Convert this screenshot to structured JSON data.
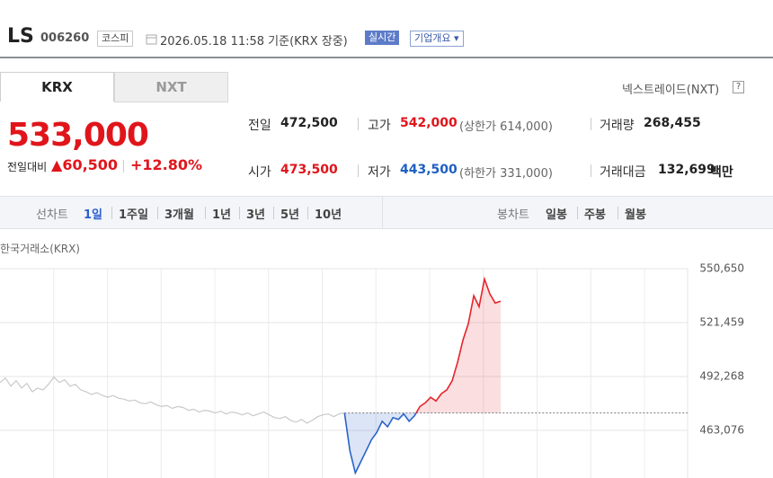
{
  "header": {
    "name": "LS",
    "code": "006260",
    "market": "코스피",
    "timestamp": "2026.05.18 11:58 기준(KRX 장중)",
    "realtime": "실시간",
    "company_info": "기업개요"
  },
  "tabs": [
    "KRX",
    "NXT"
  ],
  "nxt_link": "넥스트레이드(NXT)",
  "help": "?",
  "price": {
    "current": "533,000",
    "change_label": "전일대비",
    "change": "60,500",
    "change_pct": "+12.80%"
  },
  "summary": [
    {
      "label": "전일",
      "value": "472,500"
    },
    {
      "label": "고가",
      "value": "542,000",
      "note": "(상한가 614,000)"
    },
    {
      "label": "거래량",
      "value": "268,455"
    },
    {
      "label": "시가",
      "value": "473,500"
    },
    {
      "label": "저가",
      "value": "443,500",
      "note": "(하한가 331,000)"
    },
    {
      "label": "거래대금",
      "value": "132,699",
      "unit": "백만"
    }
  ],
  "toolbar": {
    "line_chart": {
      "label": "선차트",
      "periods": [
        "1일",
        "1주일",
        "3개월",
        "1년",
        "3년",
        "5년",
        "10년"
      ]
    },
    "candle_chart": {
      "label": "봉차트",
      "periods": [
        "일봉",
        "주봉",
        "월봉"
      ]
    }
  },
  "source": "한국거래소(KRX)",
  "chart_data": {
    "type": "line",
    "ylim": [
      437293,
      550650
    ],
    "yticks": [
      {
        "value": 463076,
        "label": "463,076"
      },
      {
        "value": 492268,
        "label": "492,268"
      },
      {
        "value": 521459,
        "label": "521,459"
      },
      {
        "value": 550650,
        "label": "550,650"
      }
    ],
    "grid": true,
    "series": [
      {
        "color": "#c9c9c9",
        "values": [
          489000,
          491500,
          487000,
          490000,
          486000,
          488500,
          484000,
          486000,
          485000,
          488000,
          492000,
          489000,
          490500,
          487000,
          488000,
          485000,
          484000,
          482500,
          483500,
          482000,
          481000,
          482000,
          480500,
          480000,
          479000,
          479500,
          478000,
          477500,
          478500,
          477000,
          476000,
          476500,
          475000,
          476000,
          475500,
          474000,
          474500,
          473000,
          474000,
          473500,
          472500,
          473500,
          472000,
          473000,
          472500,
          471500,
          472500,
          471000,
          472000,
          473000,
          471500,
          470000,
          469500,
          470500,
          468500,
          467500,
          469000,
          467000,
          468500,
          470500,
          471500,
          472000,
          470500,
          472000,
          472500,
          null,
          null,
          null,
          null,
          null,
          null,
          null,
          null,
          null,
          null,
          null,
          null,
          null,
          null,
          null,
          null,
          null,
          null,
          null,
          null,
          null,
          null,
          null,
          null,
          null,
          null,
          null,
          null,
          null
        ]
      },
      {
        "color": "#e5242b",
        "color_below": "#2b63c9",
        "values": [
          null,
          null,
          null,
          null,
          null,
          null,
          null,
          null,
          null,
          null,
          null,
          null,
          null,
          null,
          null,
          null,
          null,
          null,
          null,
          null,
          null,
          null,
          null,
          null,
          null,
          null,
          null,
          null,
          null,
          null,
          null,
          null,
          null,
          null,
          null,
          null,
          null,
          null,
          null,
          null,
          null,
          null,
          null,
          null,
          null,
          null,
          null,
          null,
          null,
          null,
          null,
          null,
          null,
          null,
          null,
          null,
          null,
          null,
          null,
          null,
          null,
          null,
          null,
          null,
          472500,
          452000,
          440000,
          446000,
          452000,
          458000,
          462000,
          468000,
          465000,
          470000,
          469000,
          472000,
          468000,
          471000,
          476000,
          478000,
          481000,
          479000,
          483000,
          485000,
          490000,
          500000,
          512000,
          521000,
          536000,
          530000,
          545000,
          537000,
          532000,
          533000
        ]
      }
    ]
  }
}
